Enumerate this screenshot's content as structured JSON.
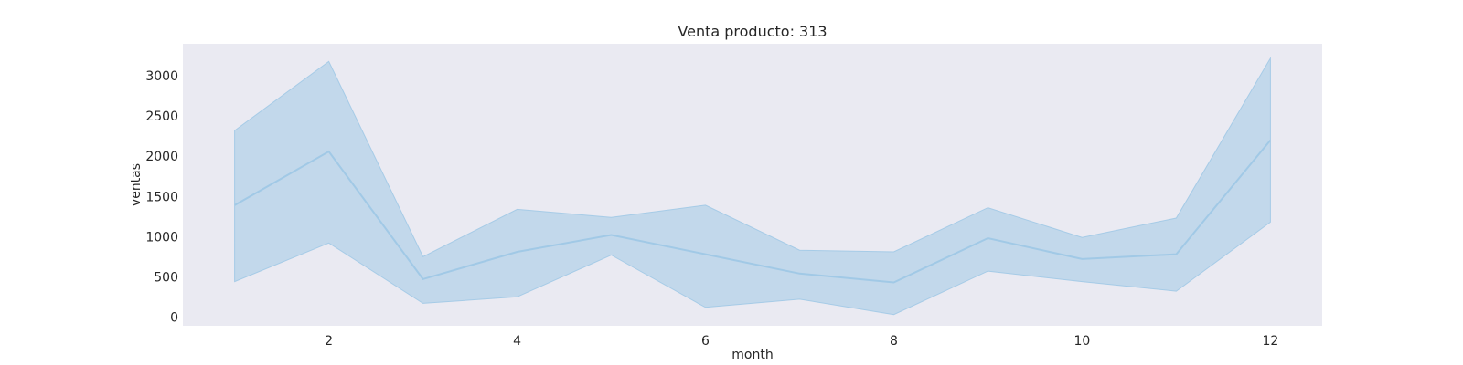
{
  "chart_data": {
    "type": "line",
    "title": "Venta producto: 313",
    "xlabel": "month",
    "ylabel": "ventas",
    "x": [
      1,
      2,
      3,
      4,
      5,
      6,
      7,
      8,
      9,
      10,
      11,
      12
    ],
    "series": [
      {
        "values": [
          1390,
          2060,
          470,
          810,
          1020,
          780,
          540,
          430,
          980,
          720,
          780,
          2200
        ],
        "ci_lower": [
          440,
          920,
          170,
          250,
          770,
          120,
          220,
          30,
          570,
          440,
          320,
          1180
        ],
        "ci_upper": [
          2320,
          3180,
          750,
          1340,
          1240,
          1390,
          830,
          810,
          1360,
          990,
          1230,
          3220
        ]
      }
    ],
    "xlim": [
      0.45,
      12.55
    ],
    "ylim": [
      -110,
      3400
    ],
    "xticks": [
      2,
      4,
      6,
      8,
      10,
      12
    ],
    "yticks": [
      0,
      500,
      1000,
      1500,
      2000,
      2500,
      3000
    ],
    "grid": false,
    "legend": "none",
    "colors": {
      "plot_background": "#eaeaf2",
      "line": "#a1c9e6",
      "band": "#a1c9e6"
    }
  }
}
